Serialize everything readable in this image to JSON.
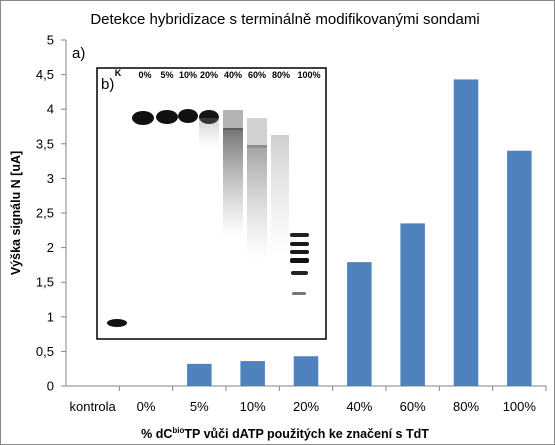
{
  "chart_data": {
    "type": "bar",
    "title": "Detekce hybridizace  s terminálně modifikovanými sondami",
    "panel_label": "a)",
    "ylabel": "Výška signálu N [uA]",
    "xlabel": {
      "prefix": "% dC",
      "superscript": "bio",
      "suffix": "TP vůči dATP použitých ke značení s TdT"
    },
    "ylim": [
      0,
      5
    ],
    "yticks": [
      "0",
      "0,5",
      "1",
      "1,5",
      "2",
      "2,5",
      "3",
      "3,5",
      "4",
      "4,5",
      "5"
    ],
    "categories": [
      "kontrola",
      "0%",
      "5%",
      "10%",
      "20%",
      "40%",
      "60%",
      "80%",
      "100%"
    ],
    "values": [
      0,
      0,
      0.32,
      0.36,
      0.43,
      1.79,
      2.35,
      4.43,
      3.4
    ],
    "bar_color": "#4f81bd",
    "grid": false,
    "legend": "none"
  },
  "inset": {
    "panel_label": "b)",
    "lane_labels": [
      "K",
      "0%",
      "5%",
      "10%",
      "20%",
      "40%",
      "60%",
      "80%",
      "100%"
    ],
    "background": "#ffffff",
    "band_color": "#141414"
  }
}
